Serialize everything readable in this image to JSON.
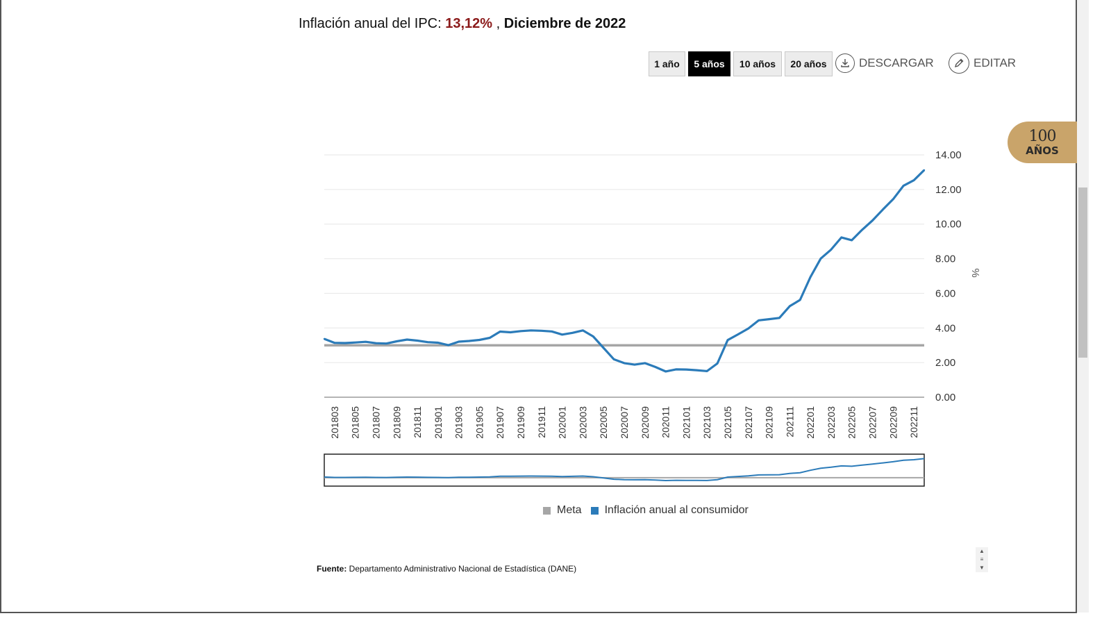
{
  "header": {
    "title_prefix": "Inflación anual del IPC: ",
    "title_value": "13,12%",
    "title_sep": " , ",
    "title_date": "Diciembre de 2022"
  },
  "range_buttons": [
    {
      "label": "1 año",
      "active": false
    },
    {
      "label": "5 años",
      "active": true
    },
    {
      "label": "10 años",
      "active": false
    },
    {
      "label": "20 años",
      "active": false
    }
  ],
  "actions": {
    "download": "DESCARGAR",
    "edit": "EDITAR"
  },
  "badge": {
    "number": "100",
    "word": "AÑOS"
  },
  "colors": {
    "inflation": "#2b7bb9",
    "meta": "#a6a6a6",
    "title_value": "#8b1a1a",
    "grid": "#e6e6e6",
    "badge": "#c9a46a"
  },
  "chart_data": {
    "type": "line",
    "ylabel": "%",
    "ylim": [
      0,
      14
    ],
    "yticks": [
      "0.00",
      "2.00",
      "4.00",
      "6.00",
      "8.00",
      "10.00",
      "12.00",
      "14.00"
    ],
    "x_tick_labels": [
      "201803",
      "201805",
      "201807",
      "201809",
      "201811",
      "201901",
      "201903",
      "201905",
      "201907",
      "201909",
      "201911",
      "202001",
      "202003",
      "202005",
      "202007",
      "202009",
      "202011",
      "202101",
      "202103",
      "202105",
      "202107",
      "202109",
      "202111",
      "202201",
      "202203",
      "202205",
      "202207",
      "202209",
      "202211"
    ],
    "x": [
      "201802",
      "201803",
      "201804",
      "201805",
      "201806",
      "201807",
      "201808",
      "201809",
      "201810",
      "201811",
      "201812",
      "201901",
      "201902",
      "201903",
      "201904",
      "201905",
      "201906",
      "201907",
      "201908",
      "201909",
      "201910",
      "201911",
      "201912",
      "202001",
      "202002",
      "202003",
      "202004",
      "202005",
      "202006",
      "202007",
      "202008",
      "202009",
      "202010",
      "202011",
      "202012",
      "202101",
      "202102",
      "202103",
      "202104",
      "202105",
      "202106",
      "202107",
      "202108",
      "202109",
      "202110",
      "202111",
      "202112",
      "202201",
      "202202",
      "202203",
      "202204",
      "202205",
      "202206",
      "202207",
      "202208",
      "202209",
      "202210",
      "202211",
      "202212"
    ],
    "series": [
      {
        "name": "Meta",
        "values": [
          3.0,
          3.0,
          3.0,
          3.0,
          3.0,
          3.0,
          3.0,
          3.0,
          3.0,
          3.0,
          3.0,
          3.0,
          3.0,
          3.0,
          3.0,
          3.0,
          3.0,
          3.0,
          3.0,
          3.0,
          3.0,
          3.0,
          3.0,
          3.0,
          3.0,
          3.0,
          3.0,
          3.0,
          3.0,
          3.0,
          3.0,
          3.0,
          3.0,
          3.0,
          3.0,
          3.0,
          3.0,
          3.0,
          3.0,
          3.0,
          3.0,
          3.0,
          3.0,
          3.0,
          3.0,
          3.0,
          3.0,
          3.0,
          3.0,
          3.0,
          3.0,
          3.0,
          3.0,
          3.0,
          3.0,
          3.0,
          3.0,
          3.0,
          3.0
        ]
      },
      {
        "name": "Inflación anual al consumidor",
        "values": [
          3.37,
          3.14,
          3.13,
          3.16,
          3.2,
          3.12,
          3.1,
          3.23,
          3.33,
          3.27,
          3.18,
          3.15,
          3.01,
          3.21,
          3.25,
          3.31,
          3.43,
          3.79,
          3.75,
          3.82,
          3.86,
          3.84,
          3.8,
          3.62,
          3.72,
          3.86,
          3.51,
          2.85,
          2.19,
          1.97,
          1.88,
          1.97,
          1.75,
          1.49,
          1.61,
          1.6,
          1.56,
          1.51,
          1.95,
          3.3,
          3.63,
          3.97,
          4.44,
          4.51,
          4.58,
          5.26,
          5.62,
          6.94,
          8.01,
          8.53,
          9.23,
          9.07,
          9.67,
          10.21,
          10.84,
          11.44,
          12.22,
          12.53,
          13.12
        ]
      }
    ],
    "legend": {
      "position": "bottom",
      "items": [
        "Meta",
        "Inflación anual al consumidor"
      ]
    }
  },
  "footer": {
    "source_label": "Fuente:",
    "source_text": " Departamento Administrativo Nacional de Estadística (DANE)"
  }
}
